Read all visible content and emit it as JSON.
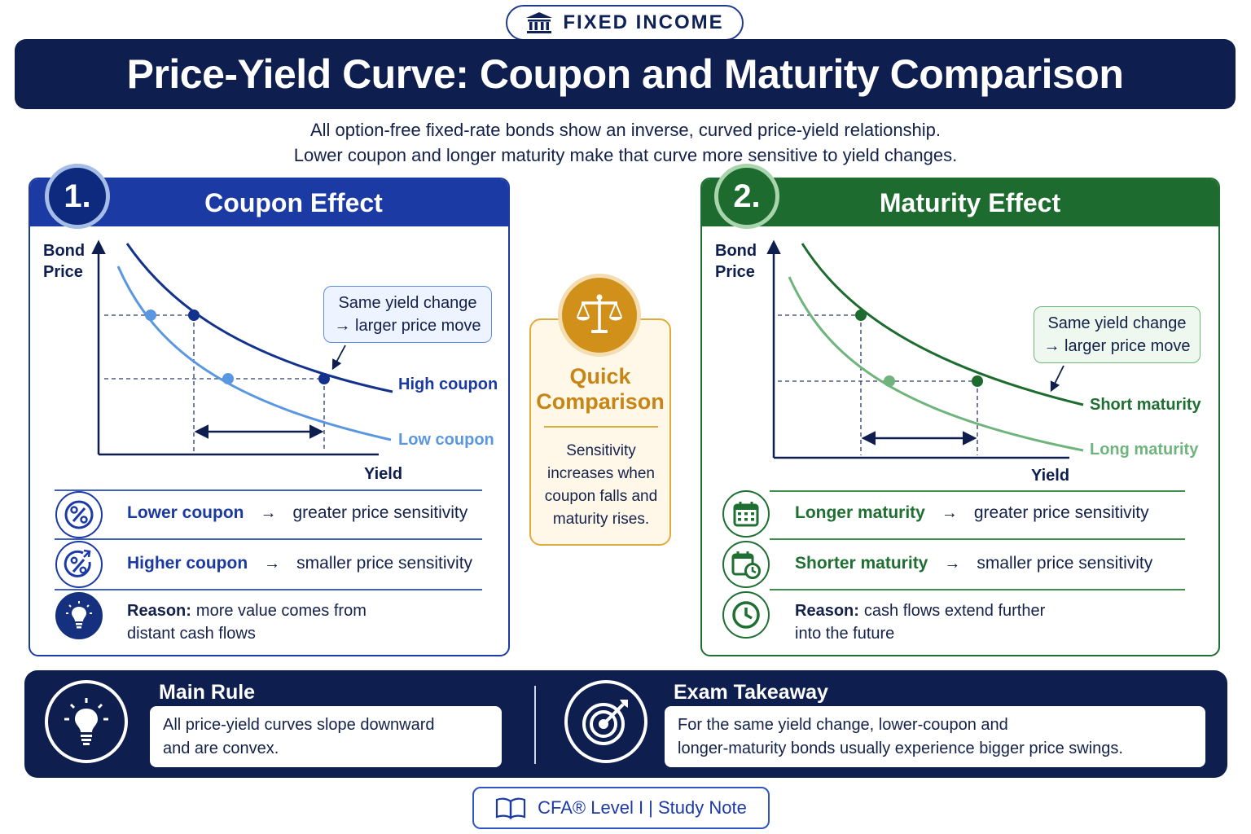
{
  "header": {
    "topic": "FIXED INCOME",
    "title": "Price-Yield Curve: Coupon and Maturity Comparison",
    "subtitle_line1": "All option-free fixed-rate bonds show an inverse, curved price-yield relationship.",
    "subtitle_line2": "Lower coupon and longer maturity make that curve more sensitive to yield changes."
  },
  "colors": {
    "navy": "#0e1f4f",
    "blue_accent": "#1b3aa3",
    "light_blue": "#5b97e0",
    "green_accent": "#1d6b2e",
    "light_green": "#6fb47c",
    "gold": "#d1901a"
  },
  "coupon_panel": {
    "number": "1.",
    "title": "Coupon Effect",
    "y_axis_line1": "Bond",
    "y_axis_line2": "Price",
    "x_axis": "Yield",
    "curve_high": "High coupon",
    "curve_low": "Low coupon",
    "callout_line1": "Same yield change",
    "callout_line2": "→ larger price move",
    "rows": [
      {
        "icon": "percent-icon",
        "key": "Lower coupon",
        "arrow": "→",
        "value": "greater price sensitivity"
      },
      {
        "icon": "percent-up-icon",
        "key": "Higher coupon",
        "arrow": "→",
        "value": "smaller price sensitivity"
      }
    ],
    "reason_key": "Reason:",
    "reason_line1": "more value comes from",
    "reason_line2": "distant cash flows"
  },
  "quick_comparison": {
    "icon": "balance-scale-icon",
    "title_line1": "Quick",
    "title_line2": "Comparison",
    "body_line1": "Sensitivity",
    "body_line2": "increases when",
    "body_line3": "coupon falls and",
    "body_line4": "maturity rises."
  },
  "maturity_panel": {
    "number": "2.",
    "title": "Maturity Effect",
    "y_axis_line1": "Bond",
    "y_axis_line2": "Price",
    "x_axis": "Yield",
    "curve_short": "Short maturity",
    "curve_long": "Long maturity",
    "callout_line1": "Same yield change",
    "callout_line2": "→ larger price move",
    "rows": [
      {
        "icon": "calendar-icon",
        "key": "Longer maturity",
        "arrow": "→",
        "value": "greater price sensitivity"
      },
      {
        "icon": "calendar-clock-icon",
        "key": "Shorter maturity",
        "arrow": "→",
        "value": "smaller price sensitivity"
      }
    ],
    "reason_key": "Reason:",
    "reason_line1": "cash flows extend further",
    "reason_line2": "into the future"
  },
  "bottom": {
    "main_rule_title": "Main Rule",
    "main_rule_line1": "All price-yield curves slope downward",
    "main_rule_line2": "and are convex.",
    "exam_title": "Exam Takeaway",
    "exam_line1": "For the same yield change, lower-coupon and",
    "exam_line2": "longer-maturity bonds usually experience bigger price swings."
  },
  "footer": {
    "label": "CFA® Level I | Study Note"
  }
}
